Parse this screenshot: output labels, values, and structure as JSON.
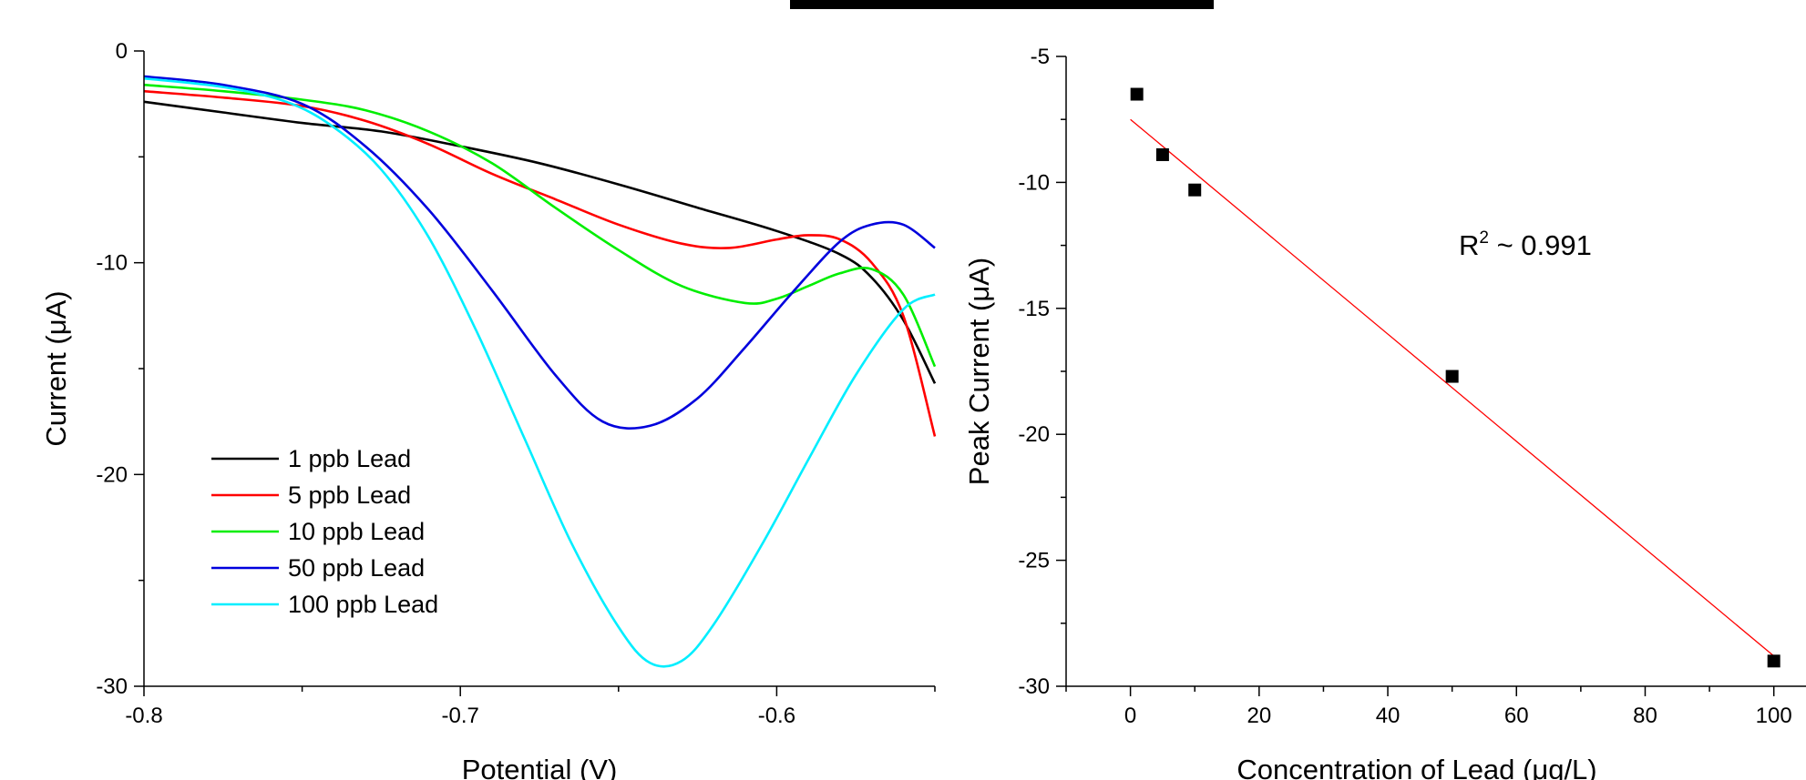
{
  "chart_data": [
    {
      "type": "line",
      "title": "",
      "xlabel": "Potential (V)",
      "ylabel": "Current (μA)",
      "xlim": [
        -0.8,
        -0.55
      ],
      "ylim": [
        -30,
        0
      ],
      "xticks": [
        "-0.8",
        "-0.7",
        "-0.6"
      ],
      "yticks": [
        "0",
        "-10",
        "-20",
        "-30"
      ],
      "grid": false,
      "legend_position": "bottom-left",
      "series": [
        {
          "name": "1 ppb Lead",
          "color": "#000000",
          "x": [
            -0.8,
            -0.775,
            -0.75,
            -0.725,
            -0.7,
            -0.675,
            -0.65,
            -0.625,
            -0.6,
            -0.58,
            -0.57,
            -0.56,
            -0.55
          ],
          "y": [
            -2.4,
            -2.9,
            -3.4,
            -3.8,
            -4.5,
            -5.3,
            -6.3,
            -7.4,
            -8.5,
            -9.6,
            -10.7,
            -12.7,
            -15.7
          ]
        },
        {
          "name": "5 ppb Lead",
          "color": "#ff0000",
          "x": [
            -0.8,
            -0.775,
            -0.75,
            -0.73,
            -0.71,
            -0.69,
            -0.67,
            -0.65,
            -0.63,
            -0.615,
            -0.6,
            -0.59,
            -0.58,
            -0.57,
            -0.56,
            -0.55
          ],
          "y": [
            -1.9,
            -2.2,
            -2.6,
            -3.3,
            -4.4,
            -5.8,
            -7.0,
            -8.2,
            -9.1,
            -9.3,
            -8.9,
            -8.7,
            -8.9,
            -10.0,
            -12.5,
            -18.2
          ]
        },
        {
          "name": "10 ppb Lead",
          "color": "#00ee00",
          "x": [
            -0.8,
            -0.775,
            -0.75,
            -0.73,
            -0.71,
            -0.69,
            -0.67,
            -0.65,
            -0.63,
            -0.61,
            -0.6,
            -0.59,
            -0.58,
            -0.57,
            -0.56,
            -0.55
          ],
          "y": [
            -1.6,
            -1.9,
            -2.3,
            -2.8,
            -3.8,
            -5.3,
            -7.4,
            -9.4,
            -11.1,
            -11.9,
            -11.7,
            -11.1,
            -10.5,
            -10.3,
            -11.5,
            -14.9
          ]
        },
        {
          "name": "50 ppb Lead",
          "color": "#0000dd",
          "x": [
            -0.8,
            -0.775,
            -0.75,
            -0.73,
            -0.71,
            -0.69,
            -0.67,
            -0.655,
            -0.64,
            -0.625,
            -0.61,
            -0.595,
            -0.58,
            -0.57,
            -0.56,
            -0.55
          ],
          "y": [
            -1.2,
            -1.6,
            -2.5,
            -4.5,
            -7.5,
            -11.3,
            -15.3,
            -17.5,
            -17.7,
            -16.4,
            -14.0,
            -11.4,
            -9.0,
            -8.2,
            -8.2,
            -9.3
          ]
        },
        {
          "name": "100 ppb Lead",
          "color": "#00eeff",
          "x": [
            -0.8,
            -0.775,
            -0.755,
            -0.74,
            -0.725,
            -0.71,
            -0.695,
            -0.68,
            -0.665,
            -0.65,
            -0.64,
            -0.63,
            -0.62,
            -0.605,
            -0.59,
            -0.575,
            -0.56,
            -0.55
          ],
          "y": [
            -1.3,
            -1.7,
            -2.4,
            -3.6,
            -5.6,
            -8.8,
            -13.2,
            -18.2,
            -23.2,
            -27.2,
            -28.9,
            -28.8,
            -27.1,
            -23.4,
            -19.3,
            -15.3,
            -12.2,
            -11.5
          ]
        }
      ]
    },
    {
      "type": "scatter",
      "title": "",
      "xlabel": "Concentration of Lead (μg/L)",
      "ylabel": "Peak Current (μA)",
      "xlim": [
        -10,
        105
      ],
      "ylim": [
        -30,
        -5
      ],
      "xticks": [
        "0",
        "20",
        "40",
        "60",
        "80",
        "100"
      ],
      "yticks": [
        "-5",
        "-10",
        "-15",
        "-20",
        "-25",
        "-30"
      ],
      "grid": false,
      "annotation": {
        "prefix": "R",
        "sup": "2",
        "suffix": " ~ 0.991"
      },
      "series": [
        {
          "marker_color": "#000000",
          "x": [
            1,
            5,
            10,
            50,
            100
          ],
          "y": [
            -6.5,
            -8.9,
            -10.3,
            -17.7,
            -29.0
          ]
        }
      ],
      "fit": {
        "color": "#ff0000",
        "x": [
          0,
          100
        ],
        "y": [
          -7.5,
          -28.8
        ]
      }
    }
  ]
}
